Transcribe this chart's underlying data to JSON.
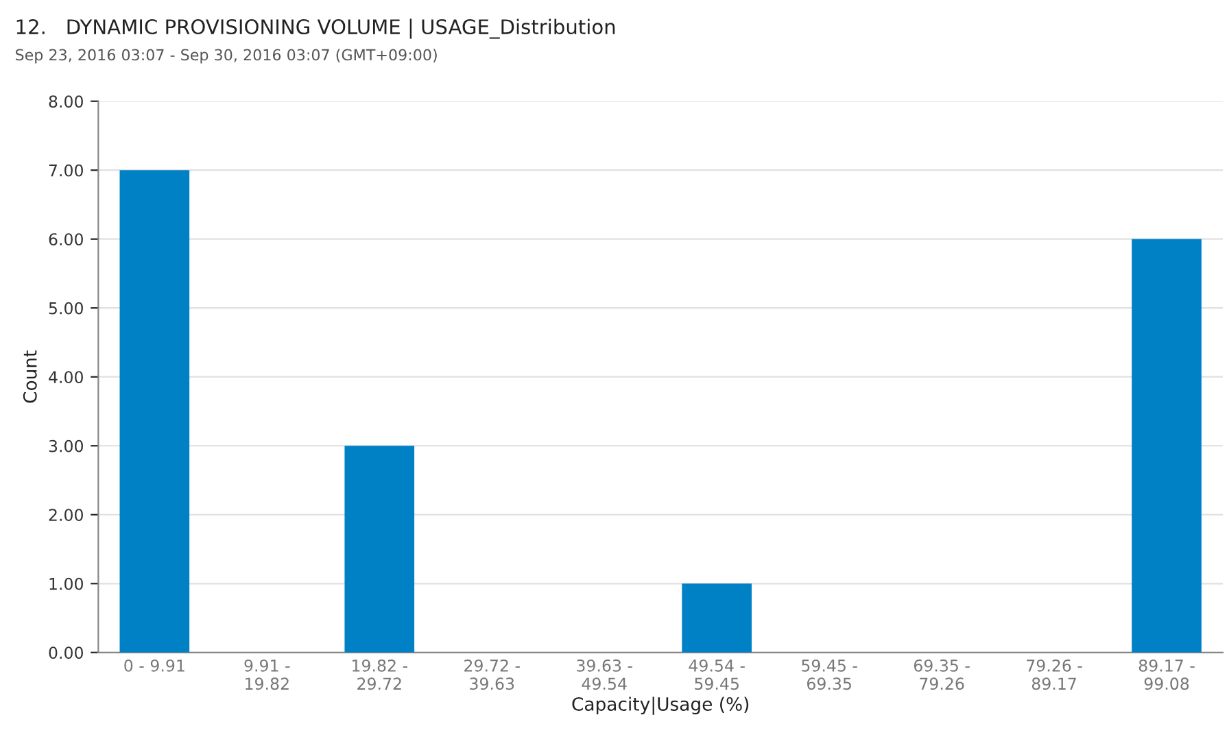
{
  "chart_data": {
    "type": "bar",
    "title": "12.   DYNAMIC PROVISIONING VOLUME | USAGE_Distribution",
    "subtitle": "Sep 23, 2016 03:07 - Sep 30, 2016 03:07 (GMT+09:00)",
    "xlabel": "Capacity|Usage (%)",
    "ylabel": "Count",
    "categories": [
      "0 - 9.91",
      "9.91 -\n19.82",
      "19.82 -\n29.72",
      "29.72 -\n39.63",
      "39.63 -\n49.54",
      "49.54 -\n59.45",
      "59.45 -\n69.35",
      "69.35 -\n79.26",
      "79.26 -\n89.17",
      "89.17 -\n99.08"
    ],
    "values": [
      7,
      0,
      3,
      0,
      0,
      1,
      0,
      0,
      0,
      6
    ],
    "color": "#0081c6",
    "ylim": [
      0,
      8
    ],
    "yticks": [
      {
        "value": 0,
        "label": "0.00"
      },
      {
        "value": 1,
        "label": "1.00"
      },
      {
        "value": 2,
        "label": "2.00"
      },
      {
        "value": 3,
        "label": "3.00"
      },
      {
        "value": 4,
        "label": "4.00"
      },
      {
        "value": 5,
        "label": "5.00"
      },
      {
        "value": 6,
        "label": "6.00"
      },
      {
        "value": 7,
        "label": "7.00"
      },
      {
        "value": 8,
        "label": "8.00"
      }
    ],
    "grid": "y"
  }
}
